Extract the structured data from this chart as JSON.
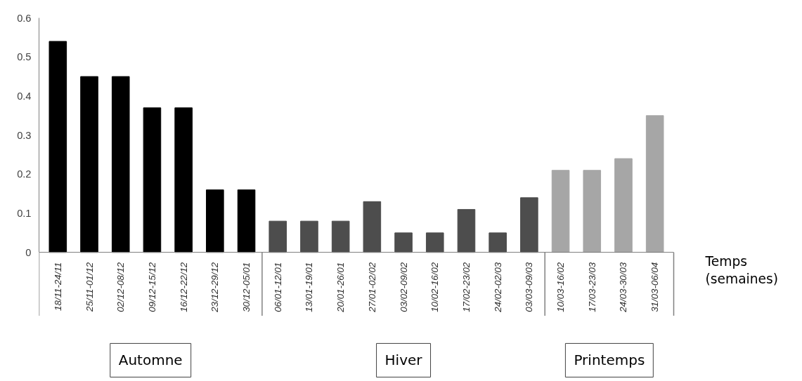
{
  "chart_data": {
    "type": "bar",
    "categories": [
      "18/11-24/11",
      "25/11-01/12",
      "02/12-08/12",
      "09/12-15/12",
      "16/12-22/12",
      "23/12-29/12",
      "30/12-05/01",
      "06/01-12/01",
      "13/01-19/01",
      "20/01-26/01",
      "27/01-02/02",
      "03/02-09/02",
      "10/02-16/02",
      "17/02-23/02",
      "24/02-02/03",
      "03/03-09/03",
      "10/03-16/02",
      "17/03-23/03",
      "24/03-30/03",
      "31/03-06/04"
    ],
    "values": [
      0.54,
      0.45,
      0.45,
      0.37,
      0.37,
      0.16,
      0.16,
      0.08,
      0.08,
      0.08,
      0.13,
      0.05,
      0.05,
      0.11,
      0.05,
      0.14,
      0.21,
      0.21,
      0.24,
      0.35
    ],
    "colors": [
      "#000000",
      "#000000",
      "#000000",
      "#000000",
      "#000000",
      "#000000",
      "#000000",
      "#4d4d4d",
      "#4d4d4d",
      "#4d4d4d",
      "#4d4d4d",
      "#4d4d4d",
      "#4d4d4d",
      "#4d4d4d",
      "#4d4d4d",
      "#4d4d4d",
      "#a6a6a6",
      "#a6a6a6",
      "#a6a6a6",
      "#a6a6a6"
    ],
    "xlabel": "Temps\n(semaines)",
    "ylim": [
      0,
      0.6
    ],
    "yticks": [
      0,
      0.1,
      0.2,
      0.3,
      0.4,
      0.5,
      0.6
    ],
    "grid": false,
    "annotations": [
      "Automne",
      "Hiver",
      "Printemps"
    ]
  }
}
